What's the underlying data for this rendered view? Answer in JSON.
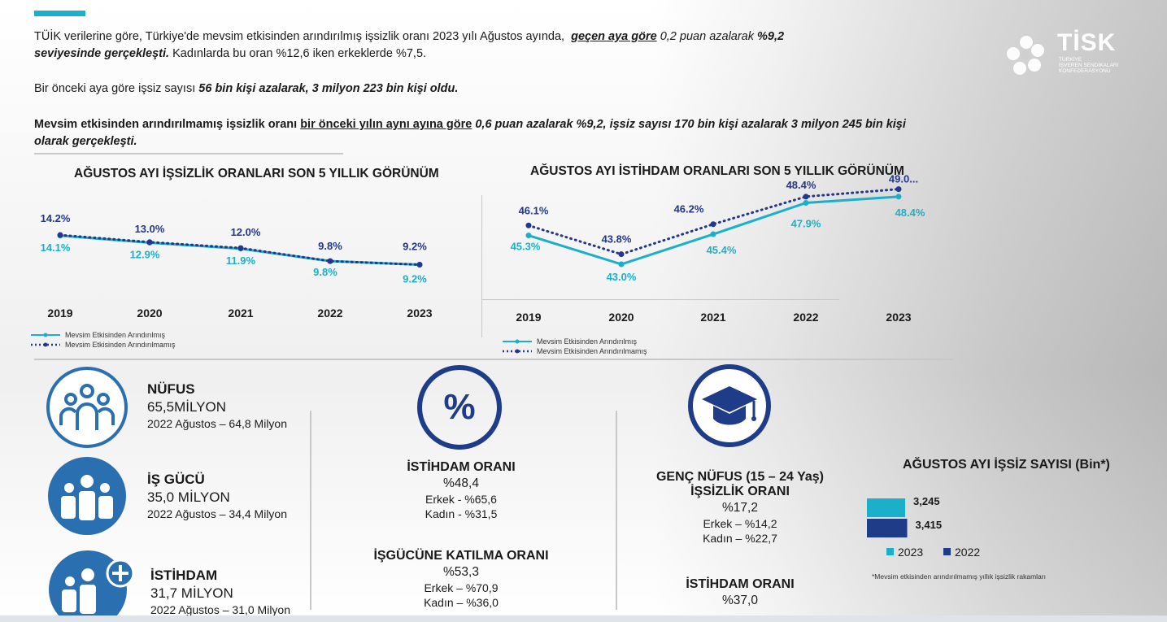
{
  "intro": {
    "p1_a": "TÜİK verilerine göre, Türkiye'de mevsim etkisinden arındırılmış işsizlik oranı 2023 yılı Ağustos ayında,",
    "p1_b": "geçen aya göre",
    "p1_c": "0,2 puan azalarak",
    "p1_d": "%9,2",
    "p1_e": "seviyesinde gerçekleşti.",
    "p1_f": "Kadınlarda bu oran %12,6 iken erkeklerde %7,5.",
    "p2_a": "Bir önceki aya göre işsiz sayısı",
    "p2_b": "56 bin kişi azalarak, 3 milyon 223 bin kişi oldu.",
    "p3_a": "Mevsim etkisinden arındırılmamış işsizlik oranı",
    "p3_b": "bir önceki yılın aynı ayına göre",
    "p3_c": "0,6 puan azalarak %9,2, işsiz sayısı 170 bin kişi azalarak 3 milyon 245 bin kişi olarak gerçekleşti."
  },
  "logo": {
    "name": "TİSK",
    "line1": "TÜRKİYE",
    "line2": "İŞVEREN SENDİKALARI",
    "line3": "KONFEDERASYONU"
  },
  "colors": {
    "accent": "#1bb0c9",
    "navy": "#1f3c88",
    "series_adjusted": "#1bb0c9",
    "series_unadjusted": "#23378c"
  },
  "chart_data": [
    {
      "type": "line",
      "title": "AĞUSTOS AYI İŞSİZLİK ORANLARI SON 5 YILLIK GÖRÜNÜM",
      "categories": [
        "2019",
        "2020",
        "2021",
        "2022",
        "2023"
      ],
      "series": [
        {
          "name": "Mevsim Etkisinden Arındırılmış",
          "values": [
            14.1,
            12.9,
            11.9,
            9.8,
            9.2
          ],
          "labels": [
            "14.1%",
            "12.9%",
            "11.9%",
            "9.8%",
            "9.2%"
          ],
          "style": "solid"
        },
        {
          "name": "Mevsim Etkisinden Arındırılmamış",
          "values": [
            14.2,
            13.0,
            12.0,
            9.8,
            9.2
          ],
          "labels": [
            "14.2%",
            "13.0%",
            "12.0%",
            "9.8%",
            "9.2%"
          ],
          "style": "dotted"
        }
      ],
      "grid": false,
      "legend": "bottom-left"
    },
    {
      "type": "line",
      "title": "AĞUSTOS AYI İSTİHDAM ORANLARI SON 5 YILLIK GÖRÜNÜM",
      "categories": [
        "2019",
        "2020",
        "2021",
        "2022",
        "2023"
      ],
      "series": [
        {
          "name": "Mevsim Etkisinden Arındırılmış",
          "values": [
            45.3,
            43.0,
            45.4,
            47.9,
            48.4
          ],
          "labels": [
            "45.3%",
            "43.0%",
            "45.4%",
            "47.9%",
            "48.4%"
          ],
          "style": "solid"
        },
        {
          "name": "Mevsim Etkisinden Arındırılmamış",
          "values": [
            46.1,
            43.8,
            46.2,
            48.4,
            49.0
          ],
          "labels": [
            "46.1%",
            "43.8%",
            "46.2%",
            "48.4%",
            "49.0..."
          ],
          "style": "dotted"
        }
      ],
      "grid": false,
      "legend": "bottom-left"
    },
    {
      "type": "bar",
      "title": "AĞUSTOS AYI İŞSİZ SAYISI (Bin*)",
      "categories": [
        "2023",
        "2022"
      ],
      "values": [
        3245,
        3415
      ],
      "labels": [
        "3,245",
        "3,415"
      ],
      "orientation": "horizontal",
      "legend": "bottom",
      "footnote": "*Mevsim etkisinden arındırılmamış yıllık işsizlik rakamları"
    }
  ],
  "stats_left": [
    {
      "title": "NÜFUS",
      "value": "65,5MİLYON",
      "sub": "2022 Ağustos – 64,8 Milyon"
    },
    {
      "title": "İŞ GÜCÜ",
      "value": "35,0 MİLYON",
      "sub": "2022 Ağustos – 34,4 Milyon"
    },
    {
      "title": "İSTİHDAM",
      "value": "31,7 MİLYON",
      "sub": "2022 Ağustos – 31,0 Milyon"
    }
  ],
  "center_stats": {
    "icon_symbol": "%",
    "employment": {
      "title": "İSTİHDAM ORANI",
      "value": "%48,4",
      "male": "Erkek - %65,6",
      "female": "Kadın - %31,5"
    },
    "participation": {
      "title": "İŞGÜCÜNE KATILMA ORANI",
      "value": "%53,3",
      "male": "Erkek – %70,9",
      "female": "Kadın – %36,0"
    }
  },
  "youth_stats": {
    "title1": "GENÇ NÜFUS (15 – 24 Yaş)",
    "title2": "İŞSİZLİK ORANI",
    "value": "%17,2",
    "male": "Erkek – %14,2",
    "female": "Kadın – %22,7",
    "emp_title": "İSTİHDAM ORANI",
    "emp_value": "%37,0"
  }
}
